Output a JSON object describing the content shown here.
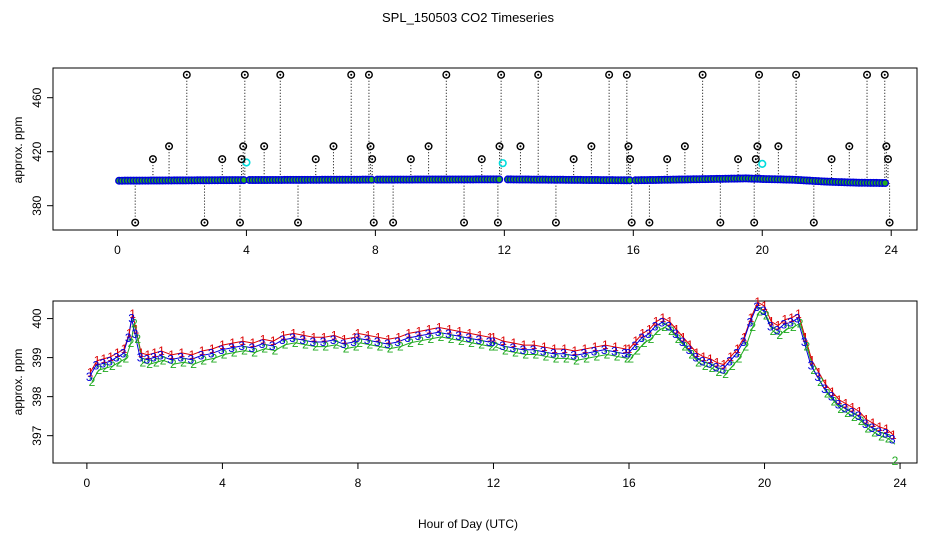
{
  "title": "SPL_150503  CO2 Timeseries",
  "xlabel": "Hour of Day (UTC)",
  "chart_data": [
    {
      "type": "scatter",
      "panel": "top",
      "ylabel": "approx. ppm",
      "xlim": [
        -2,
        24.8
      ],
      "ylim": [
        362,
        482
      ],
      "xticks": [
        0,
        4,
        8,
        12,
        16,
        20,
        24
      ],
      "yticks": [
        380,
        420,
        460
      ],
      "baseline": {
        "x": [
          0.0,
          4.0,
          8.0,
          12.0,
          16.0,
          19.5,
          20.0,
          21.0,
          22.0,
          23.0,
          23.8
        ],
        "y": [
          398.5,
          399.0,
          399.3,
          399.5,
          398.8,
          400.2,
          399.8,
          399.2,
          397.8,
          397.0,
          396.8
        ]
      },
      "spikes_high": [
        {
          "x": 1.1,
          "y": 414.5
        },
        {
          "x": 1.6,
          "y": 424
        },
        {
          "x": 2.15,
          "y": 477
        },
        {
          "x": 3.25,
          "y": 414.5
        },
        {
          "x": 3.85,
          "y": 414.5
        },
        {
          "x": 3.9,
          "y": 424
        },
        {
          "x": 3.95,
          "y": 477
        },
        {
          "x": 4.55,
          "y": 424
        },
        {
          "x": 5.05,
          "y": 477
        },
        {
          "x": 6.15,
          "y": 414.5
        },
        {
          "x": 6.7,
          "y": 424
        },
        {
          "x": 7.25,
          "y": 477
        },
        {
          "x": 7.8,
          "y": 477
        },
        {
          "x": 7.85,
          "y": 424
        },
        {
          "x": 7.9,
          "y": 414.5
        },
        {
          "x": 9.1,
          "y": 414.5
        },
        {
          "x": 9.65,
          "y": 424
        },
        {
          "x": 10.2,
          "y": 477
        },
        {
          "x": 11.3,
          "y": 414.5
        },
        {
          "x": 11.85,
          "y": 424
        },
        {
          "x": 11.9,
          "y": 477
        },
        {
          "x": 12.5,
          "y": 424
        },
        {
          "x": 13.05,
          "y": 477
        },
        {
          "x": 14.15,
          "y": 414.5
        },
        {
          "x": 14.7,
          "y": 424
        },
        {
          "x": 15.25,
          "y": 477
        },
        {
          "x": 15.8,
          "y": 477
        },
        {
          "x": 15.85,
          "y": 424
        },
        {
          "x": 15.9,
          "y": 414.5
        },
        {
          "x": 17.05,
          "y": 414.5
        },
        {
          "x": 17.6,
          "y": 424
        },
        {
          "x": 18.15,
          "y": 477
        },
        {
          "x": 19.25,
          "y": 414.5
        },
        {
          "x": 19.8,
          "y": 414.5
        },
        {
          "x": 19.85,
          "y": 424
        },
        {
          "x": 19.9,
          "y": 477
        },
        {
          "x": 20.5,
          "y": 424
        },
        {
          "x": 21.05,
          "y": 477
        },
        {
          "x": 22.15,
          "y": 414.5
        },
        {
          "x": 22.7,
          "y": 424
        },
        {
          "x": 23.25,
          "y": 477
        },
        {
          "x": 23.8,
          "y": 477
        },
        {
          "x": 23.85,
          "y": 424
        },
        {
          "x": 23.9,
          "y": 414.5
        }
      ],
      "spikes_low": [
        {
          "x": 0.55,
          "y": 367.5
        },
        {
          "x": 2.7,
          "y": 367.5
        },
        {
          "x": 3.8,
          "y": 367.5
        },
        {
          "x": 5.6,
          "y": 367.5
        },
        {
          "x": 7.95,
          "y": 367.5
        },
        {
          "x": 8.55,
          "y": 367.5
        },
        {
          "x": 10.75,
          "y": 367.5
        },
        {
          "x": 11.8,
          "y": 367.5
        },
        {
          "x": 13.6,
          "y": 367.5
        },
        {
          "x": 15.95,
          "y": 367.5
        },
        {
          "x": 16.5,
          "y": 367.5
        },
        {
          "x": 18.7,
          "y": 367.5
        },
        {
          "x": 19.75,
          "y": 367.5
        },
        {
          "x": 21.6,
          "y": 367.5
        },
        {
          "x": 23.95,
          "y": 367.5
        }
      ],
      "cyan_points": [
        {
          "x": 4.0,
          "y": 412
        },
        {
          "x": 11.95,
          "y": 411.5
        },
        {
          "x": 20.0,
          "y": 411
        }
      ]
    },
    {
      "type": "line",
      "panel": "bottom",
      "ylabel": "approx. ppm",
      "xlim": [
        -1,
        24.5
      ],
      "ylim": [
        396.3,
        400.45
      ],
      "xticks": [
        0,
        4,
        8,
        12,
        16,
        20,
        24
      ],
      "yticks": [
        397,
        398,
        399,
        400
      ],
      "series": [
        {
          "name": "1",
          "color": "#dd0000"
        },
        {
          "name": "2",
          "color": "#22aa22"
        },
        {
          "name": "3",
          "color": "#0000dd"
        }
      ],
      "x": [
        0.1,
        0.3,
        0.5,
        0.7,
        0.9,
        1.1,
        1.25,
        1.35,
        1.45,
        1.6,
        1.8,
        2.0,
        2.2,
        2.5,
        2.8,
        3.1,
        3.4,
        3.7,
        4.0,
        4.3,
        4.6,
        4.9,
        5.2,
        5.5,
        5.8,
        6.1,
        6.4,
        6.7,
        7.0,
        7.3,
        7.6,
        7.9,
        8.0,
        8.3,
        8.6,
        8.9,
        9.2,
        9.5,
        9.8,
        10.1,
        10.4,
        10.7,
        11.0,
        11.3,
        11.6,
        11.9,
        12.0,
        12.3,
        12.6,
        12.9,
        13.2,
        13.5,
        13.8,
        14.1,
        14.4,
        14.7,
        15.0,
        15.3,
        15.6,
        15.9,
        16.0,
        16.2,
        16.4,
        16.6,
        16.8,
        17.0,
        17.2,
        17.4,
        17.6,
        17.8,
        18.0,
        18.2,
        18.4,
        18.6,
        18.8,
        19.0,
        19.2,
        19.4,
        19.6,
        19.8,
        20.0,
        20.2,
        20.4,
        20.6,
        20.8,
        21.0,
        21.2,
        21.4,
        21.6,
        21.8,
        22.0,
        22.2,
        22.4,
        22.6,
        22.8,
        23.0,
        23.2,
        23.4,
        23.6,
        23.8
      ],
      "y": [
        398.5,
        398.8,
        398.85,
        398.9,
        399.0,
        399.1,
        399.5,
        400.0,
        399.6,
        399.0,
        398.95,
        399.0,
        399.05,
        398.95,
        399.0,
        398.95,
        399.05,
        399.1,
        399.2,
        399.25,
        399.3,
        399.25,
        399.35,
        399.3,
        399.45,
        399.5,
        399.45,
        399.4,
        399.4,
        399.45,
        399.35,
        399.4,
        399.5,
        399.45,
        399.4,
        399.35,
        399.4,
        399.5,
        399.55,
        399.6,
        399.65,
        399.6,
        399.55,
        399.5,
        399.45,
        399.4,
        399.4,
        399.3,
        399.25,
        399.2,
        399.2,
        399.15,
        399.1,
        399.1,
        399.05,
        399.1,
        399.15,
        399.2,
        399.15,
        399.1,
        399.1,
        399.3,
        399.5,
        399.6,
        399.8,
        399.9,
        399.8,
        399.6,
        399.4,
        399.2,
        399.0,
        398.9,
        398.85,
        398.75,
        398.7,
        398.9,
        399.1,
        399.4,
        399.9,
        400.3,
        400.2,
        399.8,
        399.7,
        399.85,
        399.9,
        400.0,
        399.4,
        398.8,
        398.5,
        398.2,
        398.0,
        397.8,
        397.7,
        397.6,
        397.5,
        397.3,
        397.2,
        397.1,
        397.05,
        396.9
      ],
      "y_tail_label_2": 396.35
    }
  ]
}
